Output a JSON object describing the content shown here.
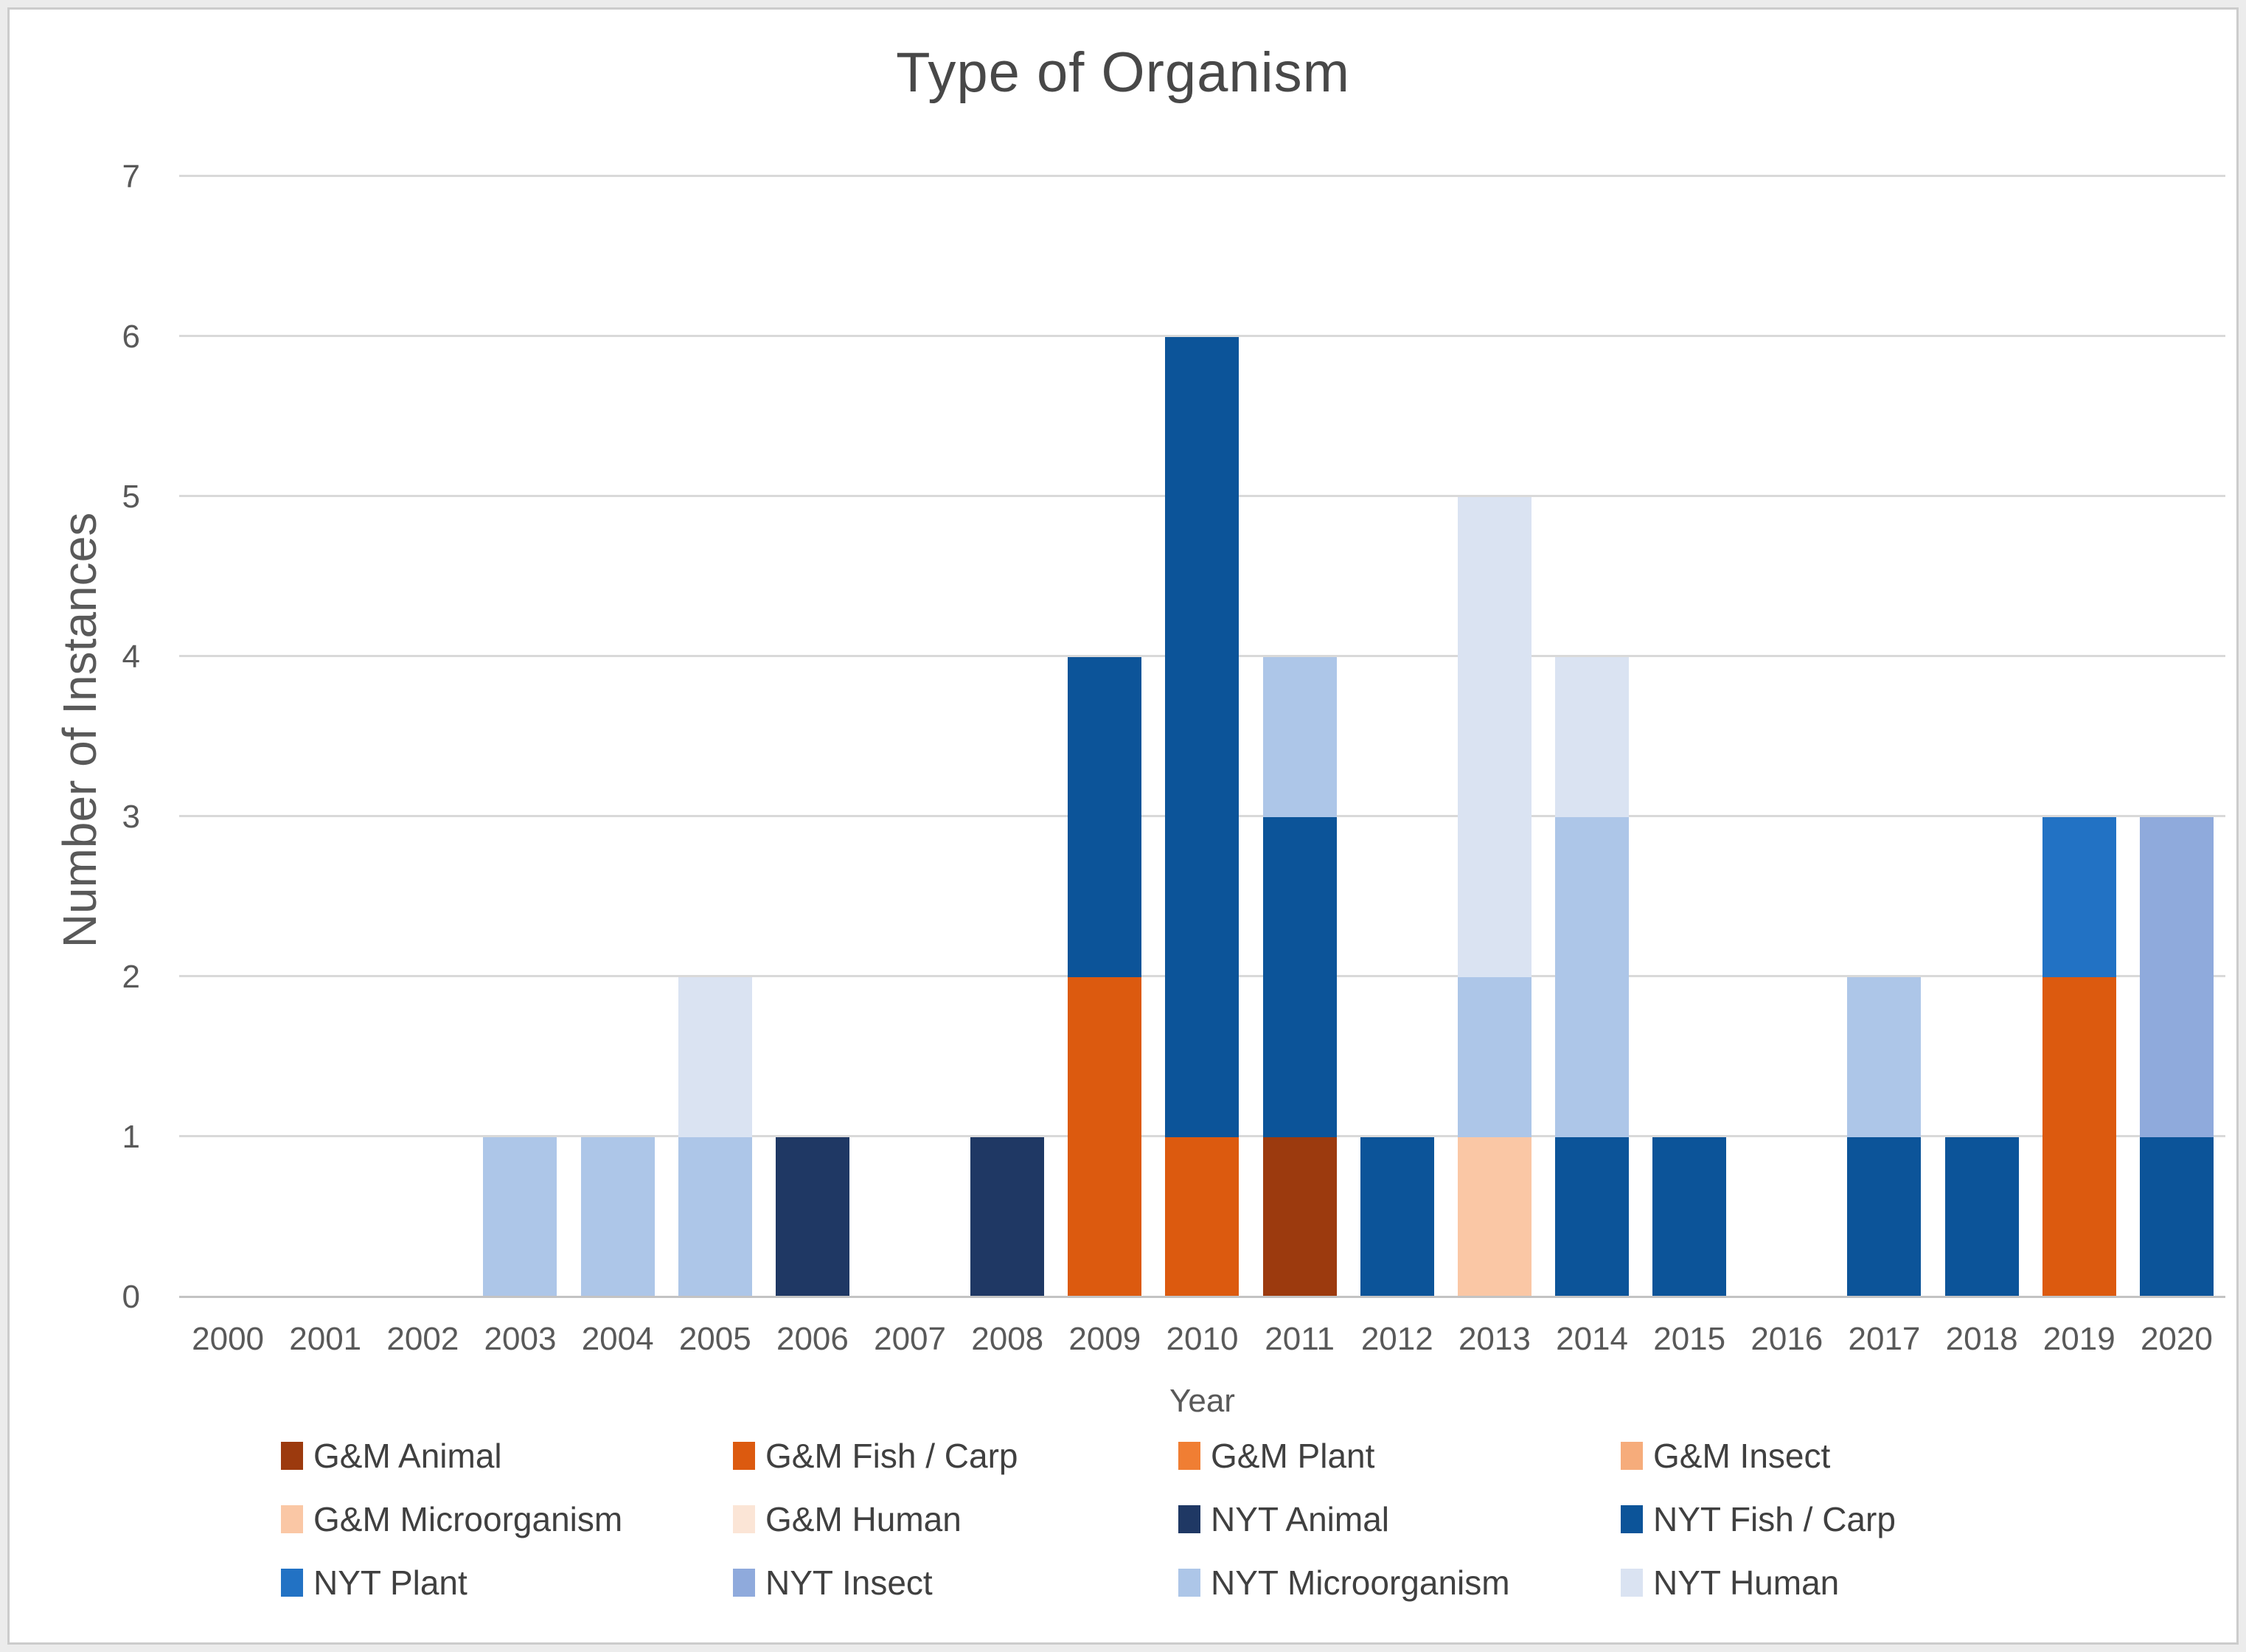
{
  "title": "Type of Organism",
  "axes": {
    "y_title": "Number of Instances",
    "x_title": "Year",
    "y_ticks": [
      0,
      1,
      2,
      3,
      4,
      5,
      6,
      7
    ]
  },
  "chart_data": {
    "type": "bar",
    "stacked": true,
    "title": "Type of Organism",
    "xlabel": "Year",
    "ylabel": "Number of Instances",
    "ylim": [
      0,
      7
    ],
    "grid": true,
    "legend_position": "bottom",
    "categories": [
      "2000",
      "2001",
      "2002",
      "2003",
      "2004",
      "2005",
      "2006",
      "2007",
      "2008",
      "2009",
      "2010",
      "2011",
      "2012",
      "2013",
      "2014",
      "2015",
      "2016",
      "2017",
      "2018",
      "2019",
      "2020"
    ],
    "series": [
      {
        "name": "G&M Animal",
        "color": "#9C3A0E",
        "values": [
          0,
          0,
          0,
          0,
          0,
          0,
          0,
          0,
          0,
          0,
          0,
          1,
          0,
          0,
          0,
          0,
          0,
          0,
          0,
          0,
          0
        ]
      },
      {
        "name": "G&M Fish / Carp",
        "color": "#DC5A0F",
        "values": [
          0,
          0,
          0,
          0,
          0,
          0,
          0,
          0,
          0,
          2,
          1,
          0,
          0,
          0,
          0,
          0,
          0,
          0,
          0,
          2,
          0
        ]
      },
      {
        "name": "G&M Plant",
        "color": "#F07E33",
        "values": [
          0,
          0,
          0,
          0,
          0,
          0,
          0,
          0,
          0,
          0,
          0,
          0,
          0,
          0,
          0,
          0,
          0,
          0,
          0,
          0,
          0
        ]
      },
      {
        "name": "G&M Insect",
        "color": "#F6AC7B",
        "values": [
          0,
          0,
          0,
          0,
          0,
          0,
          0,
          0,
          0,
          0,
          0,
          0,
          0,
          0,
          0,
          0,
          0,
          0,
          0,
          0,
          0
        ]
      },
      {
        "name": "G&M Microorganism",
        "color": "#FAC7A5",
        "values": [
          0,
          0,
          0,
          0,
          0,
          0,
          0,
          0,
          0,
          0,
          0,
          0,
          0,
          1,
          0,
          0,
          0,
          0,
          0,
          0,
          0
        ]
      },
      {
        "name": "G&M Human",
        "color": "#FBE5D6",
        "values": [
          0,
          0,
          0,
          0,
          0,
          0,
          0,
          0,
          0,
          0,
          0,
          0,
          0,
          0,
          0,
          0,
          0,
          0,
          0,
          0,
          0
        ]
      },
      {
        "name": "NYT Animal",
        "color": "#1F3864",
        "values": [
          0,
          0,
          0,
          0,
          0,
          0,
          1,
          0,
          1,
          0,
          0,
          0,
          0,
          0,
          0,
          0,
          0,
          0,
          0,
          0,
          0
        ]
      },
      {
        "name": "NYT Fish / Carp",
        "color": "#0C5499",
        "values": [
          0,
          0,
          0,
          0,
          0,
          0,
          0,
          0,
          0,
          2,
          5,
          2,
          1,
          0,
          1,
          1,
          0,
          1,
          1,
          0,
          1
        ]
      },
      {
        "name": "NYT Plant",
        "color": "#2272C4",
        "values": [
          0,
          0,
          0,
          0,
          0,
          0,
          0,
          0,
          0,
          0,
          0,
          0,
          0,
          0,
          0,
          0,
          0,
          0,
          0,
          1,
          0
        ]
      },
      {
        "name": "NYT Insect",
        "color": "#8FAADC",
        "values": [
          0,
          0,
          0,
          0,
          0,
          0,
          0,
          0,
          0,
          0,
          0,
          0,
          0,
          0,
          0,
          0,
          0,
          0,
          0,
          0,
          2
        ]
      },
      {
        "name": "NYT Microorganism",
        "color": "#ADC6E8",
        "values": [
          0,
          0,
          0,
          1,
          1,
          1,
          0,
          0,
          0,
          0,
          0,
          1,
          0,
          1,
          2,
          0,
          0,
          1,
          0,
          0,
          0
        ]
      },
      {
        "name": "NYT Human",
        "color": "#DAE3F2",
        "values": [
          0,
          0,
          0,
          0,
          0,
          1,
          0,
          0,
          0,
          0,
          0,
          0,
          0,
          3,
          1,
          0,
          0,
          0,
          0,
          0,
          0
        ]
      }
    ]
  }
}
